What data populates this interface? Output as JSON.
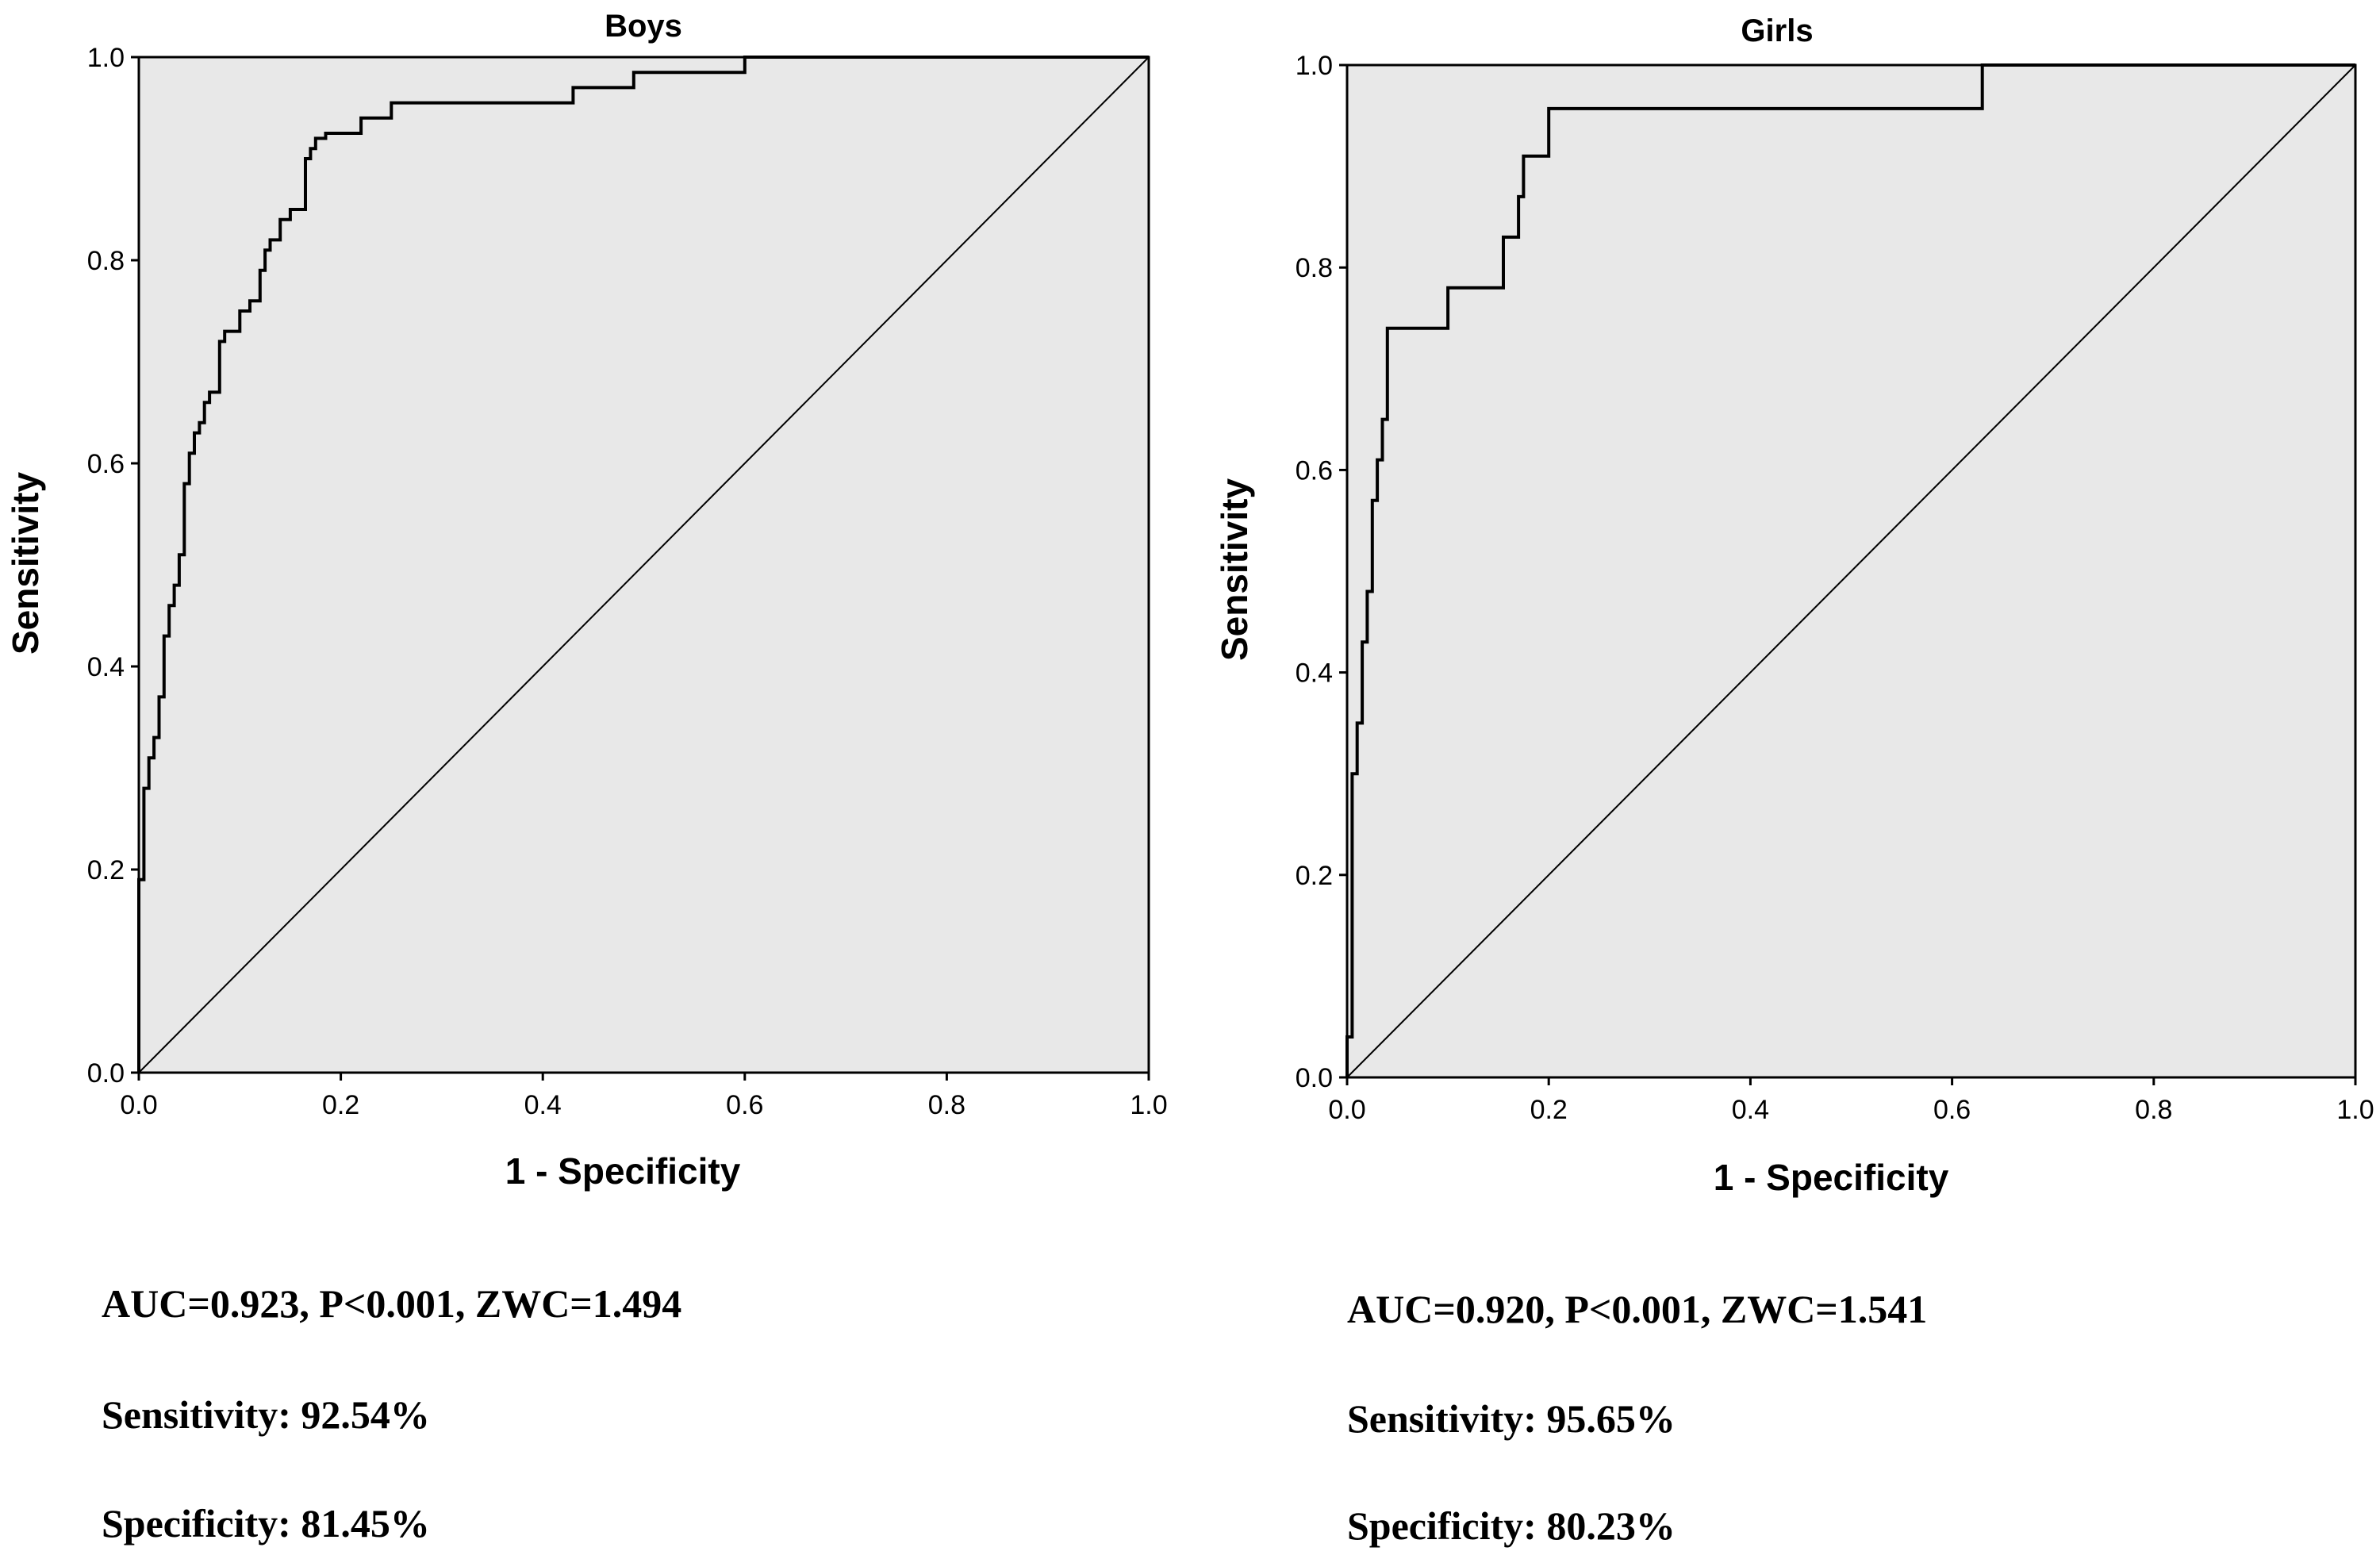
{
  "chart_data": [
    {
      "type": "line",
      "title": "Boys",
      "xlabel": "1 - Specificity",
      "ylabel": "Sensitivity",
      "xlim": [
        0,
        1
      ],
      "ylim": [
        0,
        1
      ],
      "xticks": [
        "0.0",
        "0.2",
        "0.4",
        "0.6",
        "0.8",
        "1.0"
      ],
      "yticks": [
        "0.0",
        "0.2",
        "0.4",
        "0.6",
        "0.8",
        "1.0"
      ],
      "grid": false,
      "series": [
        {
          "kind": "step",
          "x": [
            0.0,
            0.0,
            0.005,
            0.005,
            0.01,
            0.01,
            0.015,
            0.015,
            0.02,
            0.02,
            0.025,
            0.025,
            0.03,
            0.03,
            0.035,
            0.035,
            0.04,
            0.04,
            0.045,
            0.045,
            0.05,
            0.05,
            0.055,
            0.055,
            0.06,
            0.06,
            0.065,
            0.065,
            0.07,
            0.07,
            0.08,
            0.08,
            0.085,
            0.085,
            0.1,
            0.1,
            0.11,
            0.11,
            0.12,
            0.12,
            0.125,
            0.125,
            0.13,
            0.13,
            0.14,
            0.14,
            0.15,
            0.15,
            0.165,
            0.165,
            0.17,
            0.17,
            0.175,
            0.175,
            0.185,
            0.185,
            0.2,
            0.2,
            0.22,
            0.22,
            0.235,
            0.235,
            0.25,
            0.25,
            0.27,
            0.27,
            0.43,
            0.43,
            0.49,
            0.49,
            0.6,
            0.6,
            1.0
          ],
          "y": [
            0.0,
            0.19,
            0.19,
            0.28,
            0.28,
            0.31,
            0.31,
            0.33,
            0.33,
            0.37,
            0.37,
            0.43,
            0.43,
            0.46,
            0.46,
            0.48,
            0.48,
            0.51,
            0.51,
            0.58,
            0.58,
            0.61,
            0.61,
            0.63,
            0.63,
            0.64,
            0.64,
            0.66,
            0.66,
            0.67,
            0.67,
            0.72,
            0.72,
            0.73,
            0.73,
            0.75,
            0.75,
            0.76,
            0.76,
            0.79,
            0.79,
            0.81,
            0.81,
            0.82,
            0.82,
            0.84,
            0.84,
            0.85,
            0.85,
            0.9,
            0.9,
            0.91,
            0.91,
            0.92,
            0.92,
            0.925,
            0.925,
            0.925,
            0.925,
            0.94,
            0.94,
            0.94,
            0.94,
            0.955,
            0.955,
            0.955,
            0.955,
            0.97,
            0.97,
            0.985,
            0.985,
            1.0,
            1.0
          ]
        },
        {
          "kind": "reference",
          "x": [
            0,
            1
          ],
          "y": [
            0,
            1
          ]
        }
      ],
      "stats": [
        "AUC=0.923, P<0.001, ZWC=1.494",
        "Sensitivity: 92.54%",
        "Specificity: 81.45%"
      ]
    },
    {
      "type": "line",
      "title": "Girls",
      "xlabel": "1 - Specificity",
      "ylabel": "Sensitivity",
      "xlim": [
        0,
        1
      ],
      "ylim": [
        0,
        1
      ],
      "xticks": [
        "0.0",
        "0.2",
        "0.4",
        "0.6",
        "0.8",
        "1.0"
      ],
      "yticks": [
        "0.0",
        "0.2",
        "0.4",
        "0.6",
        "0.8",
        "1.0"
      ],
      "grid": false,
      "series": [
        {
          "kind": "step",
          "x": [
            0.0,
            0.0,
            0.005,
            0.005,
            0.01,
            0.01,
            0.015,
            0.015,
            0.02,
            0.02,
            0.025,
            0.025,
            0.03,
            0.03,
            0.035,
            0.035,
            0.04,
            0.04,
            0.045,
            0.045,
            0.1,
            0.1,
            0.115,
            0.115,
            0.155,
            0.155,
            0.17,
            0.17,
            0.175,
            0.175,
            0.2,
            0.2,
            0.63,
            0.63,
            1.0
          ],
          "y": [
            0.0,
            0.04,
            0.04,
            0.3,
            0.3,
            0.35,
            0.35,
            0.43,
            0.43,
            0.48,
            0.48,
            0.57,
            0.57,
            0.61,
            0.61,
            0.65,
            0.65,
            0.74,
            0.74,
            0.74,
            0.74,
            0.78,
            0.78,
            0.78,
            0.78,
            0.83,
            0.83,
            0.87,
            0.87,
            0.91,
            0.91,
            0.957,
            0.957,
            1.0,
            1.0
          ]
        },
        {
          "kind": "reference",
          "x": [
            0,
            1
          ],
          "y": [
            0,
            1
          ]
        }
      ],
      "stats": [
        "AUC=0.920, P<0.001, ZWC=1.541",
        "Sensitivity: 95.65%",
        "Specificity: 80.23%"
      ]
    }
  ]
}
